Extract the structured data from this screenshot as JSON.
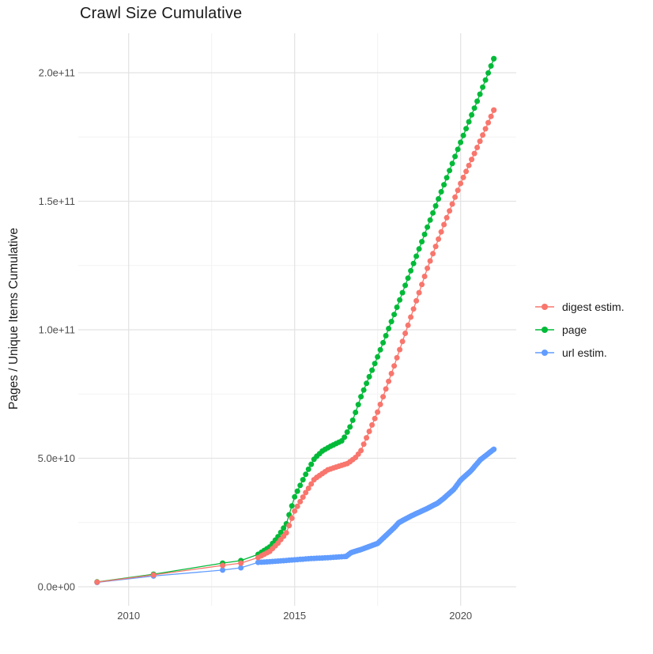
{
  "title": "Crawl Size Cumulative",
  "axes": {
    "y_label": "Pages / Unique Items Cumulative",
    "y_ticks": [
      {
        "label": "0.0e+00",
        "value_e9": 0
      },
      {
        "label": "5.0e+10",
        "value_e9": 50
      },
      {
        "label": "1.0e+11",
        "value_e9": 100
      },
      {
        "label": "1.5e+11",
        "value_e9": 150
      },
      {
        "label": "2.0e+11",
        "value_e9": 200
      }
    ],
    "y_minor_e9": [
      25,
      75,
      125,
      175
    ],
    "x_ticks": [
      {
        "label": "2010",
        "value": 2010
      },
      {
        "label": "2015",
        "value": 2015
      },
      {
        "label": "2020",
        "value": 2020
      }
    ],
    "x_minor": [
      2012.5,
      2017.5
    ]
  },
  "legend": {
    "items": [
      {
        "label": "digest estim.",
        "color": "#F8766D"
      },
      {
        "label": "page",
        "color": "#00BA38"
      },
      {
        "label": "url estim.",
        "color": "#619CFF"
      }
    ]
  },
  "chart_data": {
    "type": "line",
    "title": "Crawl Size Cumulative",
    "xlabel": "",
    "ylabel": "Pages / Unique Items Cumulative",
    "x_range": [
      2008.45,
      2021.6
    ],
    "y_range_e9": [
      -8,
      216
    ],
    "units": "values in billions (1e9) of pages / unique items, read from axis gridlines",
    "grid": "major and minor, light gray on white",
    "legend_position": "right",
    "series": [
      {
        "name": "digest estim.",
        "color": "#F8766D",
        "knots_year_value_e9": [
          [
            2009.05,
            1.8
          ],
          [
            2010.75,
            4.6
          ],
          [
            2012.83,
            8.3
          ],
          [
            2013.38,
            9.2
          ],
          [
            2013.9,
            11.4
          ],
          [
            2014.25,
            13.8
          ],
          [
            2014.5,
            17
          ],
          [
            2014.75,
            21
          ],
          [
            2015.0,
            29.5
          ],
          [
            2015.3,
            36
          ],
          [
            2015.6,
            42
          ],
          [
            2016.0,
            45.5
          ],
          [
            2016.3,
            46.8
          ],
          [
            2016.6,
            48
          ],
          [
            2016.85,
            50.5
          ],
          [
            2017.0,
            53
          ],
          [
            2017.5,
            68
          ],
          [
            2018.0,
            86
          ],
          [
            2018.5,
            105
          ],
          [
            2019.0,
            124
          ],
          [
            2019.5,
            141
          ],
          [
            2020.0,
            157
          ],
          [
            2020.5,
            171
          ],
          [
            2021.0,
            185.5
          ]
        ]
      },
      {
        "name": "page",
        "color": "#00BA38",
        "knots_year_value_e9": [
          [
            2009.05,
            1.9
          ],
          [
            2010.75,
            4.9
          ],
          [
            2012.83,
            9.2
          ],
          [
            2013.38,
            10.2
          ],
          [
            2013.9,
            12.6
          ],
          [
            2014.25,
            15.5
          ],
          [
            2014.5,
            19.5
          ],
          [
            2014.75,
            24.5
          ],
          [
            2015.0,
            35
          ],
          [
            2015.3,
            43
          ],
          [
            2015.6,
            50
          ],
          [
            2015.85,
            53
          ],
          [
            2016.1,
            54.8
          ],
          [
            2016.45,
            57
          ],
          [
            2016.7,
            63
          ],
          [
            2017.0,
            74
          ],
          [
            2017.5,
            89.5
          ],
          [
            2018.0,
            106
          ],
          [
            2018.5,
            123
          ],
          [
            2019.0,
            140
          ],
          [
            2019.5,
            156.5
          ],
          [
            2020.0,
            173
          ],
          [
            2020.5,
            189
          ],
          [
            2021.0,
            205.5
          ]
        ]
      },
      {
        "name": "url estim.",
        "color": "#619CFF",
        "knots_year_value_e9": [
          [
            2009.05,
            1.7
          ],
          [
            2010.75,
            4.2
          ],
          [
            2012.83,
            6.5
          ],
          [
            2013.38,
            7.4
          ],
          [
            2013.9,
            9.5
          ],
          [
            2014.3,
            9.8
          ],
          [
            2014.7,
            10.2
          ],
          [
            2015.0,
            10.5
          ],
          [
            2015.5,
            11.0
          ],
          [
            2016.0,
            11.3
          ],
          [
            2016.55,
            11.8
          ],
          [
            2016.7,
            13.3
          ],
          [
            2017.0,
            14.5
          ],
          [
            2017.5,
            16.9
          ],
          [
            2018.0,
            23
          ],
          [
            2018.14,
            25
          ],
          [
            2018.5,
            27.5
          ],
          [
            2019.0,
            30.5
          ],
          [
            2019.3,
            32.5
          ],
          [
            2019.5,
            34.5
          ],
          [
            2019.8,
            38
          ],
          [
            2020.0,
            41.5
          ],
          [
            2020.3,
            45
          ],
          [
            2020.6,
            49.5
          ],
          [
            2021.0,
            53.5
          ]
        ]
      }
    ],
    "point_sampling": {
      "early_single_crawls_years": [
        2009.05,
        2010.75,
        2012.83,
        2013.38,
        2013.9
      ],
      "monthly_from": 2014.0,
      "monthly_to": 2021.0,
      "monthly_step": 0.0833,
      "url_dense_from": 2016.55,
      "url_dense_step": 0.045
    }
  },
  "style": {
    "background": "#ffffff",
    "grid_major": "#e4e4e4",
    "grid_minor": "#f2f2f2",
    "axis_text_color": "#4d4d4d",
    "title_color": "#1a1a1a"
  }
}
